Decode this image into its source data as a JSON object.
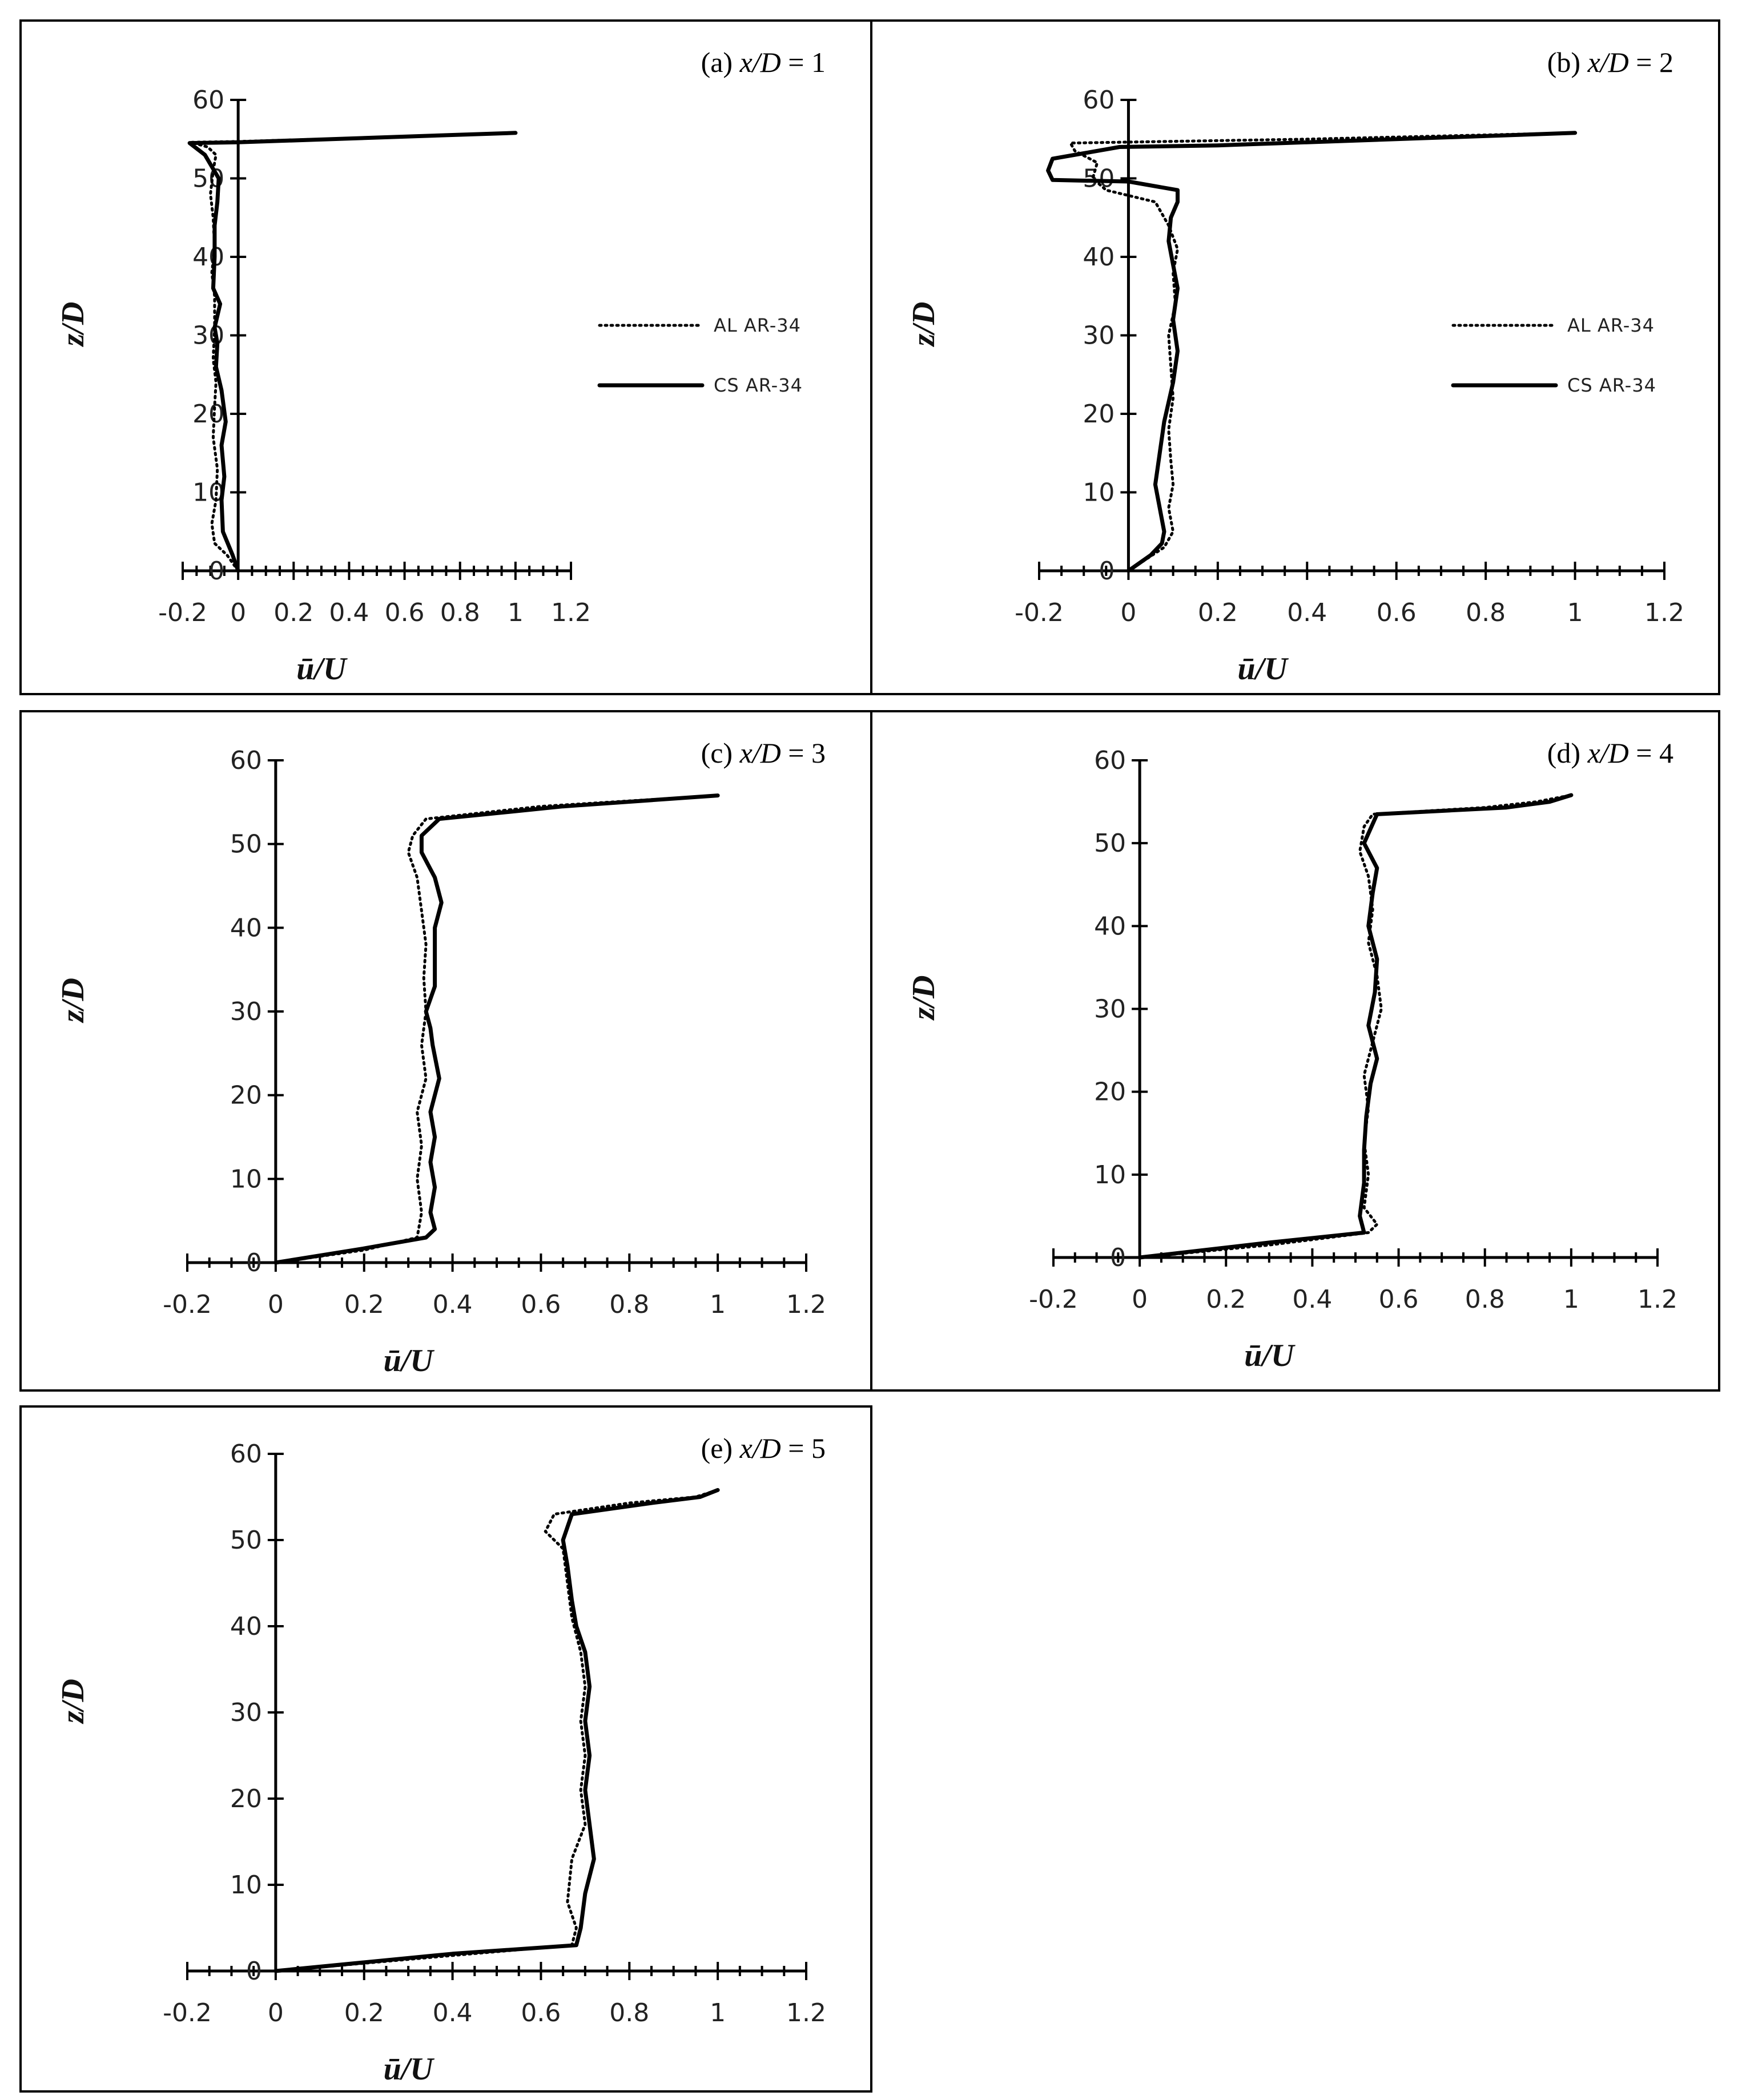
{
  "chart_data": [
    {
      "type": "line",
      "panel_label": "(a)",
      "title_var": "x/D",
      "title_eq": "= 1",
      "xlabel": "ū/U",
      "ylabel": "z/D",
      "xlim": [
        -0.2,
        1.2
      ],
      "ylim": [
        0,
        60
      ],
      "xticks": [
        "-0.2",
        "0",
        "0.2",
        "0.4",
        "0.6",
        "0.8",
        "1",
        "1.2"
      ],
      "yticks": [
        "0",
        "10",
        "20",
        "30",
        "40",
        "50",
        "60"
      ],
      "grid": false,
      "legend_position": "right",
      "series": [
        {
          "name": "AL AR-34",
          "style": "dotted",
          "points": [
            [
              0.0,
              0
            ],
            [
              -0.04,
              2
            ],
            [
              -0.085,
              3.5
            ],
            [
              -0.095,
              6
            ],
            [
              -0.08,
              9
            ],
            [
              -0.075,
              13
            ],
            [
              -0.09,
              17
            ],
            [
              -0.085,
              21
            ],
            [
              -0.08,
              24
            ],
            [
              -0.09,
              27
            ],
            [
              -0.085,
              31
            ],
            [
              -0.085,
              35
            ],
            [
              -0.095,
              38
            ],
            [
              -0.085,
              41
            ],
            [
              -0.09,
              45
            ],
            [
              -0.1,
              48
            ],
            [
              -0.09,
              51
            ],
            [
              -0.08,
              53
            ],
            [
              -0.11,
              54
            ],
            [
              -0.17,
              54.6
            ],
            [
              0.0,
              54.7
            ],
            [
              0.5,
              55.2
            ],
            [
              1.0,
              55.8
            ]
          ]
        },
        {
          "name": "CS AR-34",
          "style": "solid",
          "points": [
            [
              0.0,
              0
            ],
            [
              -0.02,
              2
            ],
            [
              -0.055,
              5
            ],
            [
              -0.06,
              9
            ],
            [
              -0.05,
              12
            ],
            [
              -0.06,
              16
            ],
            [
              -0.045,
              19
            ],
            [
              -0.06,
              23
            ],
            [
              -0.08,
              26
            ],
            [
              -0.075,
              29
            ],
            [
              -0.085,
              31
            ],
            [
              -0.065,
              34
            ],
            [
              -0.09,
              36
            ],
            [
              -0.085,
              40
            ],
            [
              -0.085,
              44
            ],
            [
              -0.075,
              47
            ],
            [
              -0.07,
              50
            ],
            [
              -0.12,
              53
            ],
            [
              -0.175,
              54.5
            ],
            [
              0.0,
              54.6
            ],
            [
              0.5,
              55.2
            ],
            [
              1.0,
              55.8
            ]
          ]
        }
      ]
    },
    {
      "type": "line",
      "panel_label": "(b)",
      "title_var": "x/D",
      "title_eq": "= 2",
      "xlabel": "ū/U",
      "ylabel": "z/D",
      "xlim": [
        -0.2,
        1.2
      ],
      "ylim": [
        0,
        60
      ],
      "xticks": [
        "-0.2",
        "0",
        "0.2",
        "0.4",
        "0.6",
        "0.8",
        "1",
        "1.2"
      ],
      "yticks": [
        "0",
        "10",
        "20",
        "30",
        "40",
        "50",
        "60"
      ],
      "grid": false,
      "legend_position": "right",
      "series": [
        {
          "name": "AL AR-34",
          "style": "dotted",
          "points": [
            [
              0.0,
              0
            ],
            [
              0.04,
              1.5
            ],
            [
              0.08,
              3
            ],
            [
              0.1,
              5
            ],
            [
              0.09,
              8
            ],
            [
              0.1,
              11
            ],
            [
              0.095,
              14
            ],
            [
              0.09,
              18
            ],
            [
              0.1,
              22
            ],
            [
              0.095,
              26
            ],
            [
              0.09,
              30
            ],
            [
              0.105,
              34
            ],
            [
              0.1,
              38
            ],
            [
              0.11,
              41
            ],
            [
              0.09,
              44
            ],
            [
              0.06,
              47
            ],
            [
              -0.05,
              48.5
            ],
            [
              -0.08,
              50
            ],
            [
              -0.07,
              52
            ],
            [
              -0.12,
              53.5
            ],
            [
              -0.13,
              54.5
            ],
            [
              0.4,
              55.0
            ],
            [
              1.0,
              55.8
            ]
          ]
        },
        {
          "name": "CS AR-34",
          "style": "solid",
          "points": [
            [
              0.0,
              0
            ],
            [
              0.05,
              2
            ],
            [
              0.075,
              3.5
            ],
            [
              0.08,
              5
            ],
            [
              0.07,
              8
            ],
            [
              0.06,
              11
            ],
            [
              0.07,
              15
            ],
            [
              0.08,
              19
            ],
            [
              0.1,
              24
            ],
            [
              0.11,
              28
            ],
            [
              0.1,
              32
            ],
            [
              0.11,
              36
            ],
            [
              0.1,
              39
            ],
            [
              0.09,
              42
            ],
            [
              0.095,
              45
            ],
            [
              0.11,
              47
            ],
            [
              0.11,
              48.5
            ],
            [
              0.0,
              49.6
            ],
            [
              -0.17,
              49.8
            ],
            [
              -0.18,
              51
            ],
            [
              -0.17,
              52.5
            ],
            [
              -0.1,
              53.2
            ],
            [
              -0.02,
              54.0
            ],
            [
              0.2,
              54.2
            ],
            [
              1.0,
              55.8
            ]
          ]
        }
      ]
    },
    {
      "type": "line",
      "panel_label": "(c)",
      "title_var": "x/D",
      "title_eq": "= 3",
      "xlabel": "ū/U",
      "ylabel": "z/D",
      "xlim": [
        -0.2,
        1.2
      ],
      "ylim": [
        0,
        60
      ],
      "xticks": [
        "-0.2",
        "0",
        "0.2",
        "0.4",
        "0.6",
        "0.8",
        "1",
        "1.2"
      ],
      "yticks": [
        "0",
        "10",
        "20",
        "30",
        "40",
        "50",
        "60"
      ],
      "grid": false,
      "legend_position": "none",
      "series": [
        {
          "name": "AL AR-34",
          "style": "dotted",
          "points": [
            [
              0.0,
              0
            ],
            [
              0.2,
              1.5
            ],
            [
              0.32,
              3
            ],
            [
              0.33,
              6
            ],
            [
              0.32,
              10
            ],
            [
              0.33,
              14
            ],
            [
              0.32,
              18
            ],
            [
              0.34,
              22
            ],
            [
              0.33,
              26
            ],
            [
              0.34,
              30
            ],
            [
              0.335,
              34
            ],
            [
              0.34,
              38
            ],
            [
              0.33,
              42
            ],
            [
              0.32,
              46
            ],
            [
              0.3,
              49
            ],
            [
              0.31,
              51
            ],
            [
              0.34,
              53
            ],
            [
              0.6,
              54.5
            ],
            [
              1.0,
              55.8
            ]
          ]
        },
        {
          "name": "CS AR-34",
          "style": "solid",
          "points": [
            [
              0.0,
              0
            ],
            [
              0.2,
              1.7
            ],
            [
              0.34,
              3
            ],
            [
              0.36,
              4
            ],
            [
              0.35,
              6
            ],
            [
              0.36,
              9
            ],
            [
              0.35,
              12
            ],
            [
              0.36,
              15
            ],
            [
              0.35,
              18
            ],
            [
              0.37,
              22
            ],
            [
              0.355,
              26
            ],
            [
              0.35,
              28
            ],
            [
              0.34,
              30
            ],
            [
              0.36,
              33
            ],
            [
              0.36,
              37
            ],
            [
              0.36,
              40
            ],
            [
              0.375,
              43
            ],
            [
              0.36,
              46
            ],
            [
              0.33,
              49
            ],
            [
              0.33,
              51
            ],
            [
              0.37,
              53
            ],
            [
              0.65,
              54.5
            ],
            [
              1.0,
              55.8
            ]
          ]
        }
      ]
    },
    {
      "type": "line",
      "panel_label": "(d)",
      "title_var": "x/D",
      "title_eq": "= 4",
      "xlabel": "ū/U",
      "ylabel": "z/D",
      "xlim": [
        -0.2,
        1.2
      ],
      "ylim": [
        0,
        60
      ],
      "xticks": [
        "-0.2",
        "0",
        "0.2",
        "0.4",
        "0.6",
        "0.8",
        "1",
        "1.2"
      ],
      "yticks": [
        "0",
        "10",
        "20",
        "30",
        "40",
        "50",
        "60"
      ],
      "grid": false,
      "legend_position": "none",
      "series": [
        {
          "name": "AL AR-34",
          "style": "dotted",
          "points": [
            [
              0.0,
              0
            ],
            [
              0.3,
              1.5
            ],
            [
              0.53,
              3
            ],
            [
              0.55,
              4
            ],
            [
              0.52,
              6
            ],
            [
              0.53,
              10
            ],
            [
              0.52,
              14
            ],
            [
              0.53,
              18
            ],
            [
              0.52,
              22
            ],
            [
              0.54,
              26
            ],
            [
              0.56,
              30
            ],
            [
              0.55,
              34
            ],
            [
              0.53,
              38
            ],
            [
              0.54,
              42
            ],
            [
              0.53,
              46
            ],
            [
              0.51,
              49
            ],
            [
              0.52,
              52
            ],
            [
              0.54,
              53.5
            ],
            [
              0.8,
              54.3
            ],
            [
              0.92,
              55
            ],
            [
              1.0,
              55.8
            ]
          ]
        },
        {
          "name": "CS AR-34",
          "style": "solid",
          "points": [
            [
              0.0,
              0
            ],
            [
              0.3,
              1.8
            ],
            [
              0.52,
              3
            ],
            [
              0.51,
              5
            ],
            [
              0.52,
              9
            ],
            [
              0.52,
              13
            ],
            [
              0.525,
              17
            ],
            [
              0.535,
              21
            ],
            [
              0.55,
              24
            ],
            [
              0.53,
              28
            ],
            [
              0.545,
              32
            ],
            [
              0.55,
              36
            ],
            [
              0.53,
              40
            ],
            [
              0.54,
              44
            ],
            [
              0.55,
              47
            ],
            [
              0.53,
              49
            ],
            [
              0.52,
              50
            ],
            [
              0.55,
              53.5
            ],
            [
              0.85,
              54.3
            ],
            [
              0.95,
              55
            ],
            [
              1.0,
              55.8
            ]
          ]
        }
      ]
    },
    {
      "type": "line",
      "panel_label": "(e)",
      "title_var": "x/D",
      "title_eq": "= 5",
      "xlabel": "ū/U",
      "ylabel": "z/D",
      "xlim": [
        -0.2,
        1.2
      ],
      "ylim": [
        0,
        60
      ],
      "xticks": [
        "-0.2",
        "0",
        "0.2",
        "0.4",
        "0.6",
        "0.8",
        "1",
        "1.2"
      ],
      "yticks": [
        "0",
        "10",
        "20",
        "30",
        "40",
        "50",
        "60"
      ],
      "grid": false,
      "legend_position": "none",
      "series": [
        {
          "name": "AL AR-34",
          "style": "dotted",
          "points": [
            [
              0.0,
              0
            ],
            [
              0.4,
              1.8
            ],
            [
              0.67,
              3
            ],
            [
              0.68,
              5
            ],
            [
              0.66,
              8
            ],
            [
              0.67,
              13
            ],
            [
              0.7,
              17
            ],
            [
              0.69,
              21
            ],
            [
              0.7,
              25
            ],
            [
              0.69,
              29
            ],
            [
              0.7,
              33
            ],
            [
              0.69,
              37
            ],
            [
              0.67,
              41
            ],
            [
              0.66,
              45
            ],
            [
              0.65,
              49
            ],
            [
              0.61,
              51
            ],
            [
              0.63,
              53
            ],
            [
              0.8,
              54.3
            ],
            [
              0.95,
              55
            ],
            [
              1.0,
              55.8
            ]
          ]
        },
        {
          "name": "CS AR-34",
          "style": "solid",
          "points": [
            [
              0.0,
              0
            ],
            [
              0.4,
              2
            ],
            [
              0.68,
              3
            ],
            [
              0.69,
              5
            ],
            [
              0.7,
              9
            ],
            [
              0.72,
              13
            ],
            [
              0.71,
              17
            ],
            [
              0.7,
              21
            ],
            [
              0.71,
              25
            ],
            [
              0.7,
              29
            ],
            [
              0.71,
              33
            ],
            [
              0.7,
              37
            ],
            [
              0.68,
              40
            ],
            [
              0.67,
              43
            ],
            [
              0.66,
              47
            ],
            [
              0.65,
              50
            ],
            [
              0.67,
              53
            ],
            [
              0.85,
              54.3
            ],
            [
              0.96,
              55
            ],
            [
              1.0,
              55.8
            ]
          ]
        }
      ]
    }
  ]
}
